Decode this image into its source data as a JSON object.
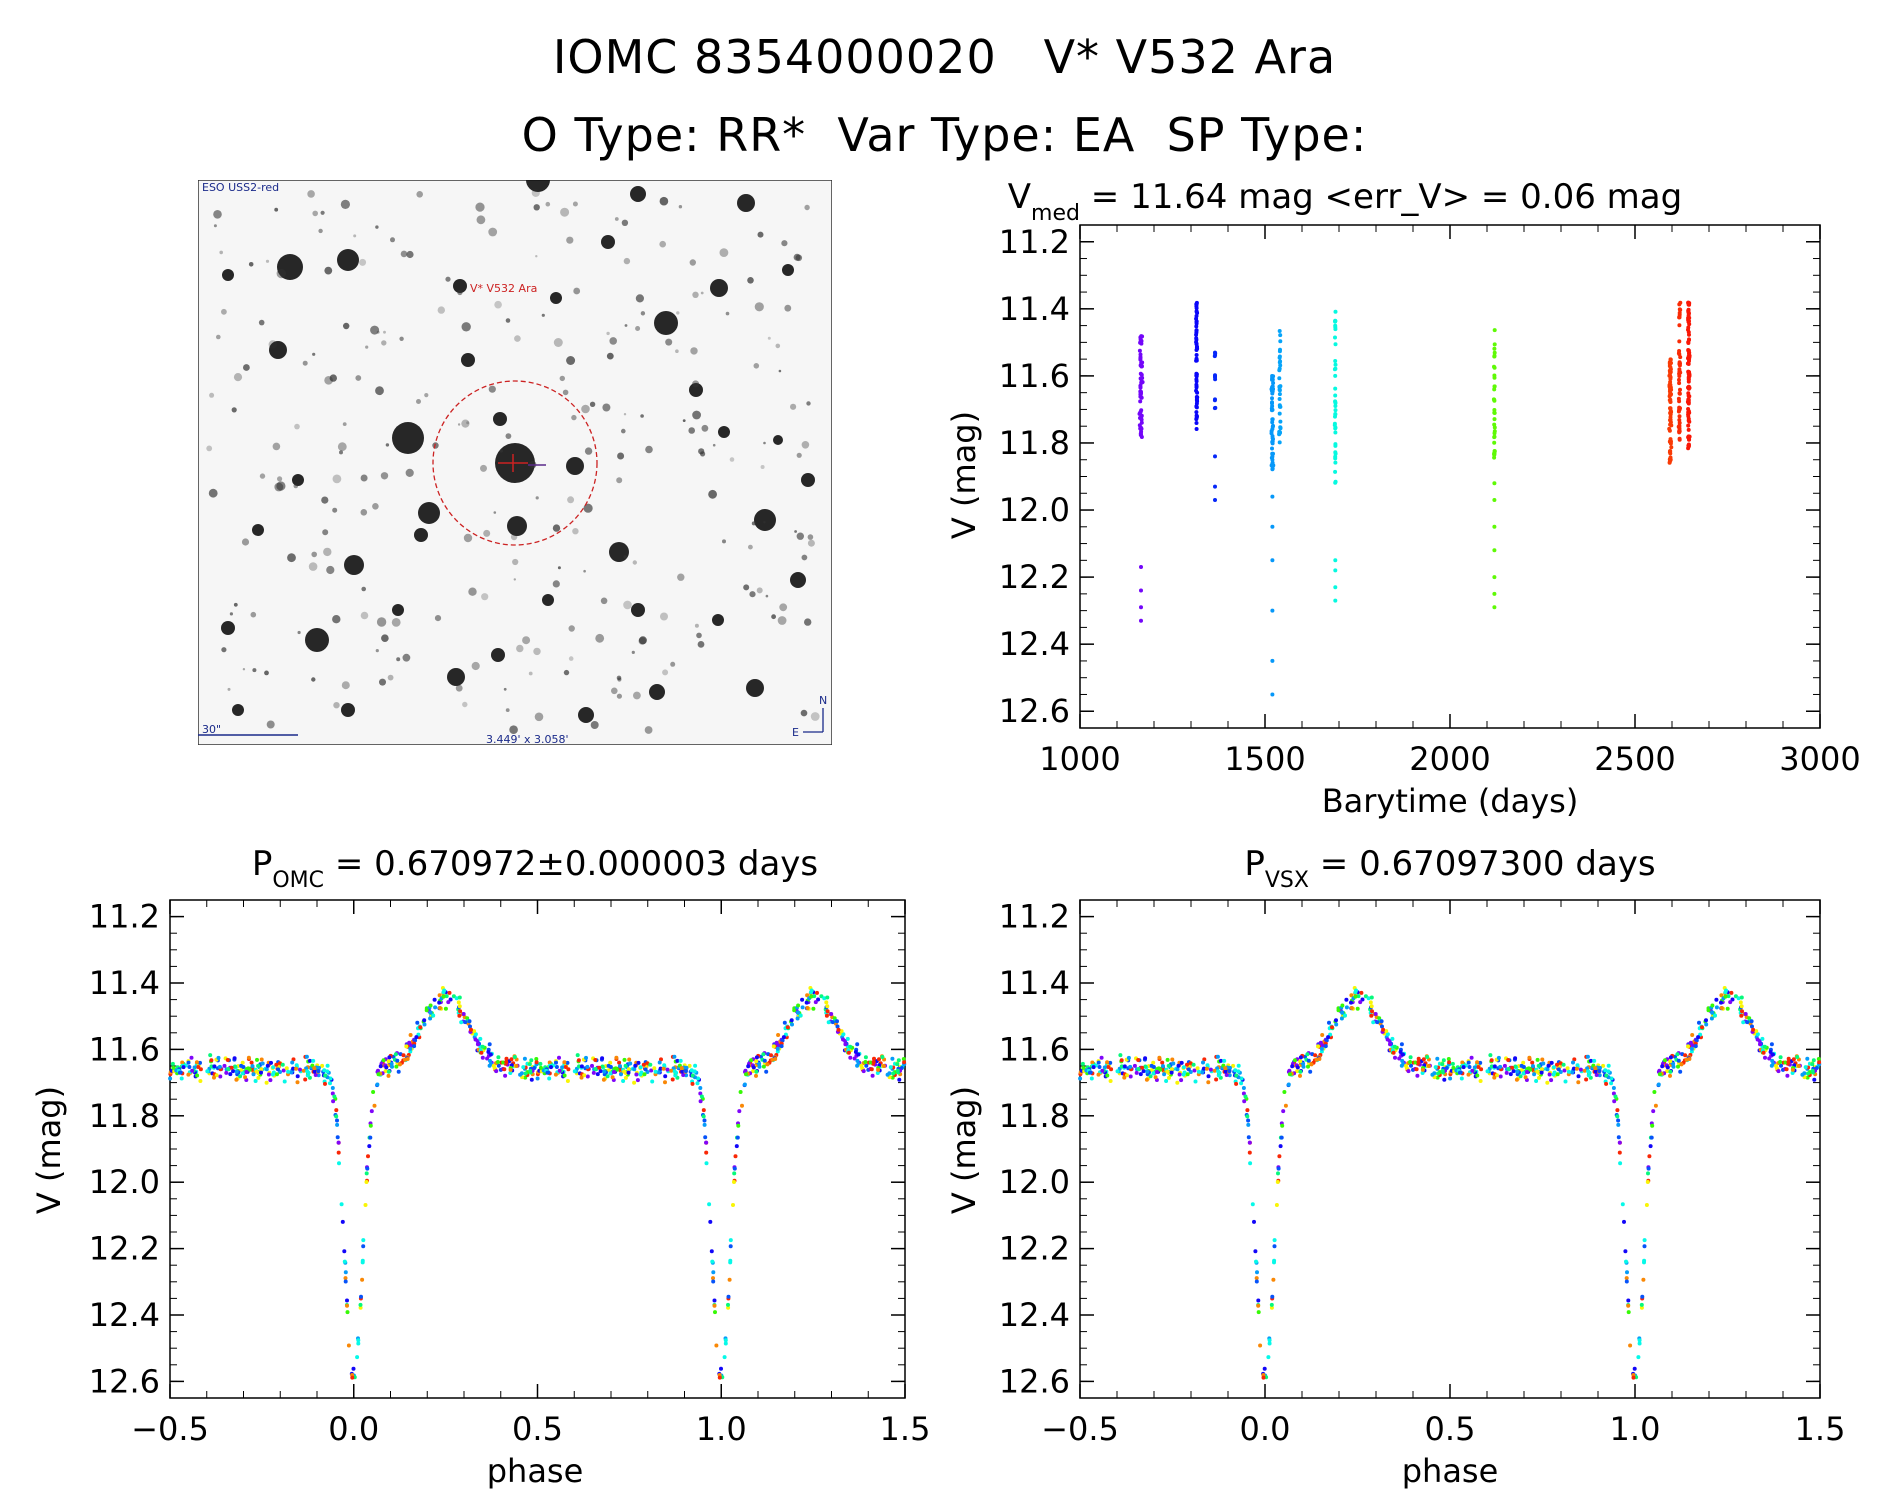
{
  "header": {
    "title": "IOMC 8354000020   V* V532 Ara",
    "subtitle": "O Type: RR*  Var Type: EA  SP Type:"
  },
  "sky_image": {
    "survey": "ESO USS2-red",
    "target_label": "V* V532 Ara",
    "scale_label": "30\"",
    "fov_label": "3.449' x 3.058'",
    "compass_n": "N",
    "compass_e": "E",
    "marker_color": "#cc2222"
  },
  "panels": {
    "timeseries": {
      "title_main": "V",
      "title_sub": "med",
      "title_rest": " = 11.64 mag <err_V> = 0.06 mag",
      "xlabel": "Barytime (days)",
      "ylabel": "V (mag)"
    },
    "phase_omc": {
      "title_main": "P",
      "title_sub": "OMC",
      "title_rest": " = 0.670972±0.000003 days",
      "xlabel": "phase",
      "ylabel": "V (mag)"
    },
    "phase_vsx": {
      "title_main": "P",
      "title_sub": "VSX",
      "title_rest": " = 0.67097300 days",
      "xlabel": "phase",
      "ylabel": "V (mag)"
    }
  },
  "chart_data": [
    {
      "type": "scatter",
      "name": "light-curve-time",
      "xlabel": "Barytime (days)",
      "ylabel": "V (mag)",
      "xlim": [
        1000,
        3000
      ],
      "ylim": [
        12.65,
        11.15
      ],
      "y_inverted": true,
      "xticks": [
        "1000",
        "1500",
        "2000",
        "2500",
        "3000"
      ],
      "yticks": [
        "11.2",
        "11.4",
        "11.6",
        "11.8",
        "12.0",
        "12.2",
        "12.4",
        "12.6"
      ],
      "grid": false,
      "color_map": "rainbow by time",
      "epochs": [
        {
          "t": 1165,
          "n": 60,
          "spread": 8,
          "vmin": 11.48,
          "vmax": 11.8,
          "extra": [
            12.17,
            12.24,
            12.29,
            12.33
          ]
        },
        {
          "t": 1315,
          "n": 60,
          "spread": 4,
          "vmin": 11.38,
          "vmax": 11.76,
          "extra": []
        },
        {
          "t": 1365,
          "n": 12,
          "spread": 2,
          "vmin": 11.53,
          "vmax": 11.72,
          "extra": [
            11.84,
            11.93,
            11.97
          ]
        },
        {
          "t": 1520,
          "n": 55,
          "spread": 6,
          "vmin": 11.6,
          "vmax": 11.88,
          "extra": [
            11.96,
            12.05,
            12.15,
            12.3,
            12.45,
            12.55
          ]
        },
        {
          "t": 1540,
          "n": 35,
          "spread": 5,
          "vmin": 11.46,
          "vmax": 11.82,
          "extra": []
        },
        {
          "t": 1690,
          "n": 40,
          "spread": 3,
          "vmin": 11.39,
          "vmax": 11.92,
          "extra": [
            12.15,
            12.18,
            12.23,
            12.27
          ]
        },
        {
          "t": 2120,
          "n": 35,
          "spread": 3,
          "vmin": 11.46,
          "vmax": 11.85,
          "extra": [
            11.92,
            11.97,
            12.05,
            12.12,
            12.2,
            12.25,
            12.29
          ]
        },
        {
          "t": 2595,
          "n": 70,
          "spread": 7,
          "vmin": 11.55,
          "vmax": 11.86,
          "extra": []
        },
        {
          "t": 2620,
          "n": 50,
          "spread": 5,
          "vmin": 11.38,
          "vmax": 11.8,
          "extra": []
        },
        {
          "t": 2645,
          "n": 90,
          "spread": 6,
          "vmin": 11.38,
          "vmax": 11.82,
          "extra": []
        }
      ]
    },
    {
      "type": "scatter",
      "name": "phase-curve-omc",
      "xlabel": "phase",
      "ylabel": "V (mag)",
      "xlim": [
        -0.5,
        1.5
      ],
      "ylim": [
        12.65,
        11.15
      ],
      "y_inverted": true,
      "xticks": [
        "−0.5",
        "0.0",
        "0.5",
        "1.0",
        "1.5"
      ],
      "yticks": [
        "11.2",
        "11.4",
        "11.6",
        "11.8",
        "12.0",
        "12.2",
        "12.4",
        "12.6"
      ],
      "grid": false,
      "light_curve_model": {
        "baseline": 11.66,
        "primary_min_depth": 12.6,
        "primary_min_phase": 0.0,
        "bump_phase": 0.25,
        "bump_mag": 11.42
      }
    },
    {
      "type": "scatter",
      "name": "phase-curve-vsx",
      "xlabel": "phase",
      "ylabel": "V (mag)",
      "xlim": [
        -0.5,
        1.5
      ],
      "ylim": [
        12.65,
        11.15
      ],
      "y_inverted": true,
      "xticks": [
        "−0.5",
        "0.0",
        "0.5",
        "1.0",
        "1.5"
      ],
      "yticks": [
        "11.2",
        "11.4",
        "11.6",
        "11.8",
        "12.0",
        "12.2",
        "12.4",
        "12.6"
      ],
      "grid": false,
      "light_curve_model": {
        "baseline": 11.66,
        "primary_min_depth": 12.6,
        "primary_min_phase": 0.0,
        "bump_phase": 0.25,
        "bump_mag": 11.42
      }
    }
  ]
}
